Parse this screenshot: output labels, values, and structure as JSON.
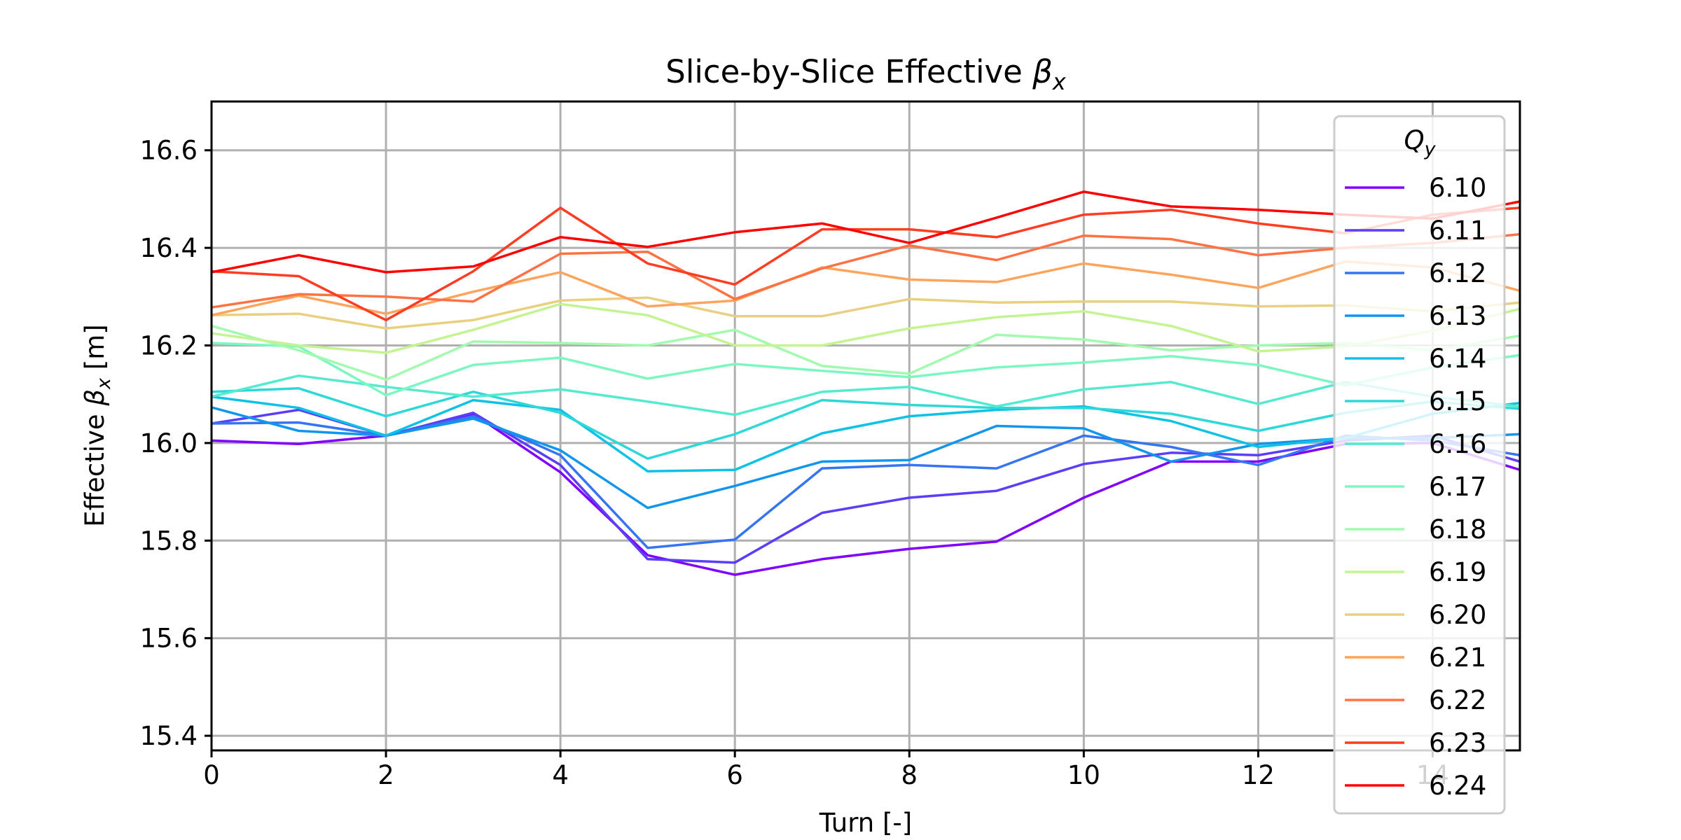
{
  "chart_data": {
    "type": "line",
    "title": "Slice-by-Slice Effective βx",
    "title_parts": {
      "prefix": "Slice-by-Slice Effective ",
      "symbol": "β",
      "subscript": "x"
    },
    "xlabel": "Turn [-]",
    "ylabel": "Effective βx [m]",
    "ylabel_parts": {
      "prefix": "Effective ",
      "symbol": "β",
      "subscript": "x",
      "suffix": " [m]"
    },
    "xlim": [
      0,
      15
    ],
    "ylim": [
      15.37,
      16.7
    ],
    "x_ticks": [
      "0",
      "2",
      "4",
      "6",
      "8",
      "10",
      "12",
      "14"
    ],
    "y_ticks": [
      "15.4",
      "15.6",
      "15.8",
      "16.0",
      "16.2",
      "16.4",
      "16.6"
    ],
    "grid": true,
    "legend": {
      "title": "Qy",
      "title_parts": {
        "symbol": "Q",
        "subscript": "y"
      },
      "placement": "upper right"
    },
    "x": [
      0,
      1,
      2,
      3,
      4,
      5,
      6,
      7,
      8,
      9,
      10,
      11,
      12,
      13,
      14,
      15
    ],
    "series": [
      {
        "name": "6.10",
        "color": "#8000ff",
        "values": [
          16.005,
          15.998,
          16.015,
          16.06,
          15.94,
          15.77,
          15.73,
          15.762,
          15.783,
          15.798,
          15.888,
          15.962,
          15.962,
          15.998,
          16.0,
          15.945
        ]
      },
      {
        "name": "6.11",
        "color": "#5a3ef9",
        "values": [
          16.04,
          16.068,
          16.015,
          16.062,
          15.955,
          15.762,
          15.755,
          15.857,
          15.888,
          15.902,
          15.957,
          15.98,
          15.975,
          16.005,
          16.015,
          15.962
        ]
      },
      {
        "name": "6.12",
        "color": "#3574f2",
        "values": [
          16.04,
          16.042,
          16.015,
          16.055,
          15.975,
          15.785,
          15.802,
          15.948,
          15.955,
          15.948,
          16.015,
          15.992,
          15.955,
          16.015,
          16.005,
          15.975
        ]
      },
      {
        "name": "6.13",
        "color": "#1296eb",
        "values": [
          16.073,
          16.025,
          16.015,
          16.05,
          15.985,
          15.867,
          15.912,
          15.962,
          15.965,
          16.035,
          16.03,
          15.962,
          15.998,
          16.01,
          16.01,
          16.018
        ]
      },
      {
        "name": "6.14",
        "color": "#0ec2e5",
        "values": [
          16.095,
          16.072,
          16.015,
          16.088,
          16.068,
          15.942,
          15.945,
          16.02,
          16.055,
          16.068,
          16.075,
          16.045,
          15.992,
          16.01,
          16.06,
          16.082
        ]
      },
      {
        "name": "6.15",
        "color": "#2ed7d8",
        "values": [
          16.105,
          16.112,
          16.055,
          16.105,
          16.062,
          15.968,
          16.018,
          16.088,
          16.078,
          16.072,
          16.072,
          16.06,
          16.025,
          16.062,
          16.085,
          16.07
        ]
      },
      {
        "name": "6.16",
        "color": "#55ead0",
        "values": [
          16.095,
          16.138,
          16.115,
          16.095,
          16.11,
          16.085,
          16.058,
          16.105,
          16.115,
          16.075,
          16.11,
          16.125,
          16.08,
          16.125,
          16.095,
          16.075
        ]
      },
      {
        "name": "6.17",
        "color": "#7df7c2",
        "values": [
          16.205,
          16.198,
          16.098,
          16.16,
          16.175,
          16.132,
          16.162,
          16.148,
          16.135,
          16.155,
          16.165,
          16.178,
          16.16,
          16.118,
          16.155,
          16.18
        ]
      },
      {
        "name": "6.18",
        "color": "#a2faae",
        "values": [
          16.24,
          16.19,
          16.13,
          16.208,
          16.205,
          16.2,
          16.232,
          16.158,
          16.142,
          16.222,
          16.212,
          16.19,
          16.2,
          16.205,
          16.19,
          16.22
        ]
      },
      {
        "name": "6.19",
        "color": "#c4f392",
        "values": [
          16.225,
          16.2,
          16.185,
          16.232,
          16.285,
          16.262,
          16.2,
          16.2,
          16.235,
          16.258,
          16.27,
          16.24,
          16.188,
          16.198,
          16.23,
          16.275
        ]
      },
      {
        "name": "6.20",
        "color": "#e8d080",
        "values": [
          16.262,
          16.265,
          16.235,
          16.252,
          16.292,
          16.298,
          16.26,
          16.26,
          16.295,
          16.288,
          16.29,
          16.29,
          16.28,
          16.282,
          16.27,
          16.288
        ]
      },
      {
        "name": "6.21",
        "color": "#ffa45c",
        "values": [
          16.262,
          16.302,
          16.265,
          16.31,
          16.35,
          16.28,
          16.292,
          16.36,
          16.335,
          16.33,
          16.368,
          16.345,
          16.318,
          16.372,
          16.36,
          16.312
        ]
      },
      {
        "name": "6.22",
        "color": "#ff7243",
        "values": [
          16.278,
          16.305,
          16.3,
          16.29,
          16.388,
          16.392,
          16.295,
          16.358,
          16.405,
          16.375,
          16.425,
          16.418,
          16.385,
          16.4,
          16.41,
          16.428
        ]
      },
      {
        "name": "6.23",
        "color": "#ff3d22",
        "values": [
          16.352,
          16.342,
          16.252,
          16.352,
          16.482,
          16.368,
          16.325,
          16.438,
          16.438,
          16.422,
          16.468,
          16.478,
          16.45,
          16.43,
          16.468,
          16.482
        ]
      },
      {
        "name": "6.24",
        "color": "#ff0000",
        "values": [
          16.35,
          16.385,
          16.35,
          16.362,
          16.422,
          16.402,
          16.432,
          16.45,
          16.41,
          16.462,
          16.515,
          16.485,
          16.478,
          16.468,
          16.46,
          16.495
        ]
      }
    ]
  }
}
